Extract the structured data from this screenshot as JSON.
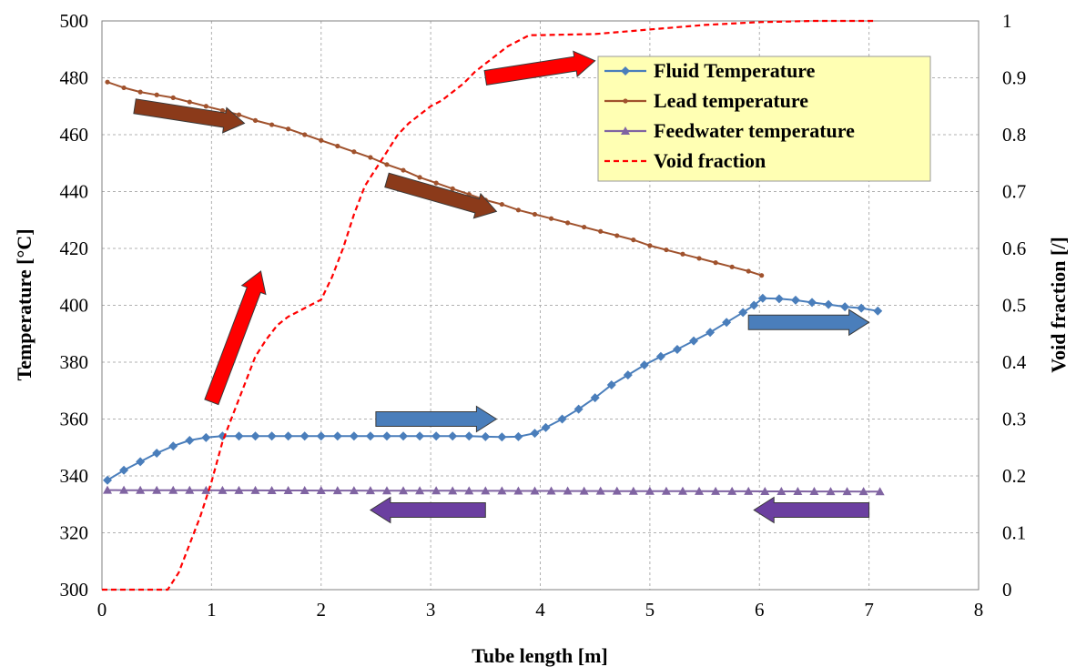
{
  "chart_data": {
    "type": "line",
    "xlabel": "Tube length [m]",
    "ylabel_left": "Temperature [°C]",
    "ylabel_right": "Void fraction [/]",
    "xlim": [
      0,
      8
    ],
    "ylim_left": [
      300,
      500
    ],
    "ylim_right": [
      0,
      1
    ],
    "x_ticks": [
      "0",
      "1",
      "2",
      "3",
      "4",
      "5",
      "6",
      "7",
      "8"
    ],
    "y_left_ticks": [
      "300",
      "320",
      "340",
      "360",
      "380",
      "400",
      "420",
      "440",
      "460",
      "480",
      "500"
    ],
    "y_right_ticks": [
      "0",
      "0.1",
      "0.2",
      "0.3",
      "0.4",
      "0.5",
      "0.6",
      "0.7",
      "0.8",
      "0.9",
      "1"
    ],
    "grid": true,
    "legend_position": "top-right",
    "legend_bg": "#ffffb3",
    "series": [
      {
        "name": "Fluid Temperature",
        "axis": "left",
        "color": "#4a7ebb",
        "marker": "diamond",
        "line": "solid",
        "points": [
          [
            0.05,
            338.5
          ],
          [
            0.2,
            342
          ],
          [
            0.35,
            345
          ],
          [
            0.5,
            348
          ],
          [
            0.65,
            350.5
          ],
          [
            0.8,
            352.5
          ],
          [
            0.95,
            353.5
          ],
          [
            1.1,
            354
          ],
          [
            1.25,
            354
          ],
          [
            1.4,
            354
          ],
          [
            1.55,
            354
          ],
          [
            1.7,
            354
          ],
          [
            1.85,
            354
          ],
          [
            2.0,
            354
          ],
          [
            2.15,
            354
          ],
          [
            2.3,
            354
          ],
          [
            2.45,
            354
          ],
          [
            2.6,
            354
          ],
          [
            2.75,
            354
          ],
          [
            2.9,
            354
          ],
          [
            3.05,
            354
          ],
          [
            3.2,
            354
          ],
          [
            3.35,
            354
          ],
          [
            3.5,
            353.8
          ],
          [
            3.65,
            353.7
          ],
          [
            3.8,
            353.8
          ],
          [
            3.95,
            355
          ],
          [
            4.05,
            357
          ],
          [
            4.2,
            360
          ],
          [
            4.35,
            363.5
          ],
          [
            4.5,
            367.5
          ],
          [
            4.65,
            372
          ],
          [
            4.8,
            375.5
          ],
          [
            4.95,
            379
          ],
          [
            5.1,
            382
          ],
          [
            5.25,
            384.5
          ],
          [
            5.4,
            387.5
          ],
          [
            5.55,
            390.5
          ],
          [
            5.7,
            394
          ],
          [
            5.85,
            397.5
          ],
          [
            5.95,
            400
          ],
          [
            6.03,
            402.5
          ],
          [
            6.18,
            402.3
          ],
          [
            6.33,
            401.8
          ],
          [
            6.48,
            401
          ],
          [
            6.63,
            400.3
          ],
          [
            6.78,
            399.5
          ],
          [
            6.93,
            399
          ],
          [
            7.08,
            398
          ]
        ]
      },
      {
        "name": "Lead temperature",
        "axis": "left",
        "color": "#a0522d",
        "marker": "dot",
        "line": "solid",
        "points": [
          [
            0.05,
            478.5
          ],
          [
            0.2,
            476.5
          ],
          [
            0.35,
            475
          ],
          [
            0.5,
            474
          ],
          [
            0.65,
            473
          ],
          [
            0.8,
            471.5
          ],
          [
            0.95,
            470
          ],
          [
            1.1,
            468.5
          ],
          [
            1.25,
            467
          ],
          [
            1.4,
            465
          ],
          [
            1.55,
            463.5
          ],
          [
            1.7,
            462
          ],
          [
            1.85,
            460
          ],
          [
            2.0,
            458
          ],
          [
            2.15,
            456
          ],
          [
            2.3,
            454
          ],
          [
            2.45,
            452
          ],
          [
            2.6,
            449.5
          ],
          [
            2.75,
            447.5
          ],
          [
            2.9,
            445
          ],
          [
            3.05,
            443
          ],
          [
            3.2,
            441
          ],
          [
            3.35,
            439
          ],
          [
            3.5,
            437
          ],
          [
            3.65,
            435.5
          ],
          [
            3.8,
            433.5
          ],
          [
            3.95,
            432
          ],
          [
            4.1,
            430.5
          ],
          [
            4.25,
            429
          ],
          [
            4.4,
            427.5
          ],
          [
            4.55,
            426
          ],
          [
            4.7,
            424.5
          ],
          [
            4.85,
            423
          ],
          [
            5.0,
            421
          ],
          [
            5.15,
            419.5
          ],
          [
            5.3,
            418
          ],
          [
            5.45,
            416.5
          ],
          [
            5.6,
            415
          ],
          [
            5.75,
            413.5
          ],
          [
            5.9,
            412
          ],
          [
            6.02,
            410.5
          ]
        ]
      },
      {
        "name": "Feedwater temperature",
        "axis": "left",
        "color": "#8064a2",
        "marker": "triangle",
        "line": "solid",
        "x_start": 0.05,
        "x_end": 7.1,
        "x_step": 0.15,
        "value_first": 335,
        "value_last": 334.5
      },
      {
        "name": "Void fraction",
        "axis": "right",
        "color": "#ff0000",
        "marker": "none",
        "line": "dashed",
        "points": [
          [
            0.0,
            0
          ],
          [
            0.6,
            0
          ],
          [
            0.7,
            0.03
          ],
          [
            0.8,
            0.08
          ],
          [
            0.9,
            0.13
          ],
          [
            1.0,
            0.19
          ],
          [
            1.1,
            0.26
          ],
          [
            1.2,
            0.31
          ],
          [
            1.3,
            0.36
          ],
          [
            1.4,
            0.41
          ],
          [
            1.5,
            0.44
          ],
          [
            1.6,
            0.465
          ],
          [
            1.7,
            0.48
          ],
          [
            1.8,
            0.49
          ],
          [
            1.9,
            0.5
          ],
          [
            2.0,
            0.51
          ],
          [
            2.1,
            0.55
          ],
          [
            2.2,
            0.6
          ],
          [
            2.3,
            0.66
          ],
          [
            2.4,
            0.71
          ],
          [
            2.5,
            0.74
          ],
          [
            2.6,
            0.77
          ],
          [
            2.7,
            0.8
          ],
          [
            2.8,
            0.82
          ],
          [
            2.9,
            0.835
          ],
          [
            3.0,
            0.85
          ],
          [
            3.1,
            0.86
          ],
          [
            3.2,
            0.875
          ],
          [
            3.3,
            0.89
          ],
          [
            3.4,
            0.91
          ],
          [
            3.5,
            0.925
          ],
          [
            3.6,
            0.94
          ],
          [
            3.7,
            0.955
          ],
          [
            3.8,
            0.965
          ],
          [
            3.9,
            0.975
          ],
          [
            4.0,
            0.975
          ],
          [
            4.5,
            0.977
          ],
          [
            5.0,
            0.985
          ],
          [
            5.5,
            0.993
          ],
          [
            6.0,
            0.998
          ],
          [
            6.5,
            1.0
          ],
          [
            7.05,
            1.0
          ]
        ]
      }
    ],
    "annotations": [
      {
        "name": "arrow-brown-1",
        "color": "#8b3a1a",
        "from": [
          0.3,
          470
        ],
        "to": [
          1.3,
          464
        ]
      },
      {
        "name": "arrow-brown-2",
        "color": "#8b3a1a",
        "from": [
          2.6,
          444
        ],
        "to": [
          3.6,
          433
        ]
      },
      {
        "name": "arrow-red-1",
        "color": "#ff0000",
        "from": [
          1.0,
          0.33
        ],
        "to": [
          1.45,
          0.56
        ]
      },
      {
        "name": "arrow-red-2",
        "color": "#ff0000",
        "from": [
          3.5,
          0.9
        ],
        "to": [
          4.5,
          0.93
        ]
      },
      {
        "name": "arrow-blue-1",
        "color": "#4a7ebb",
        "from": [
          2.5,
          360
        ],
        "to": [
          3.6,
          360
        ]
      },
      {
        "name": "arrow-blue-2",
        "color": "#4a7ebb",
        "from": [
          5.9,
          394
        ],
        "to": [
          7.0,
          394
        ]
      },
      {
        "name": "arrow-purple-1",
        "color": "#6b3fa0",
        "from": [
          3.5,
          328
        ],
        "to": [
          2.45,
          328
        ]
      },
      {
        "name": "arrow-purple-2",
        "color": "#6b3fa0",
        "from": [
          7.0,
          328
        ],
        "to": [
          5.95,
          328
        ]
      }
    ]
  }
}
